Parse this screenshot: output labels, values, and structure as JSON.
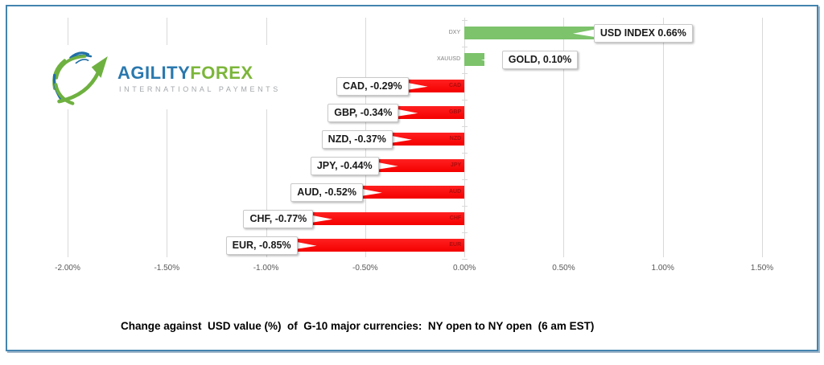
{
  "page": {
    "frame_border_color": "#4484ae",
    "background": "#ffffff"
  },
  "logo": {
    "word1": "AGILITY",
    "word2": "FOREX",
    "tagline": "INTERNATIONAL PAYMENTS",
    "word1_color": "#2a78ae",
    "word2_color": "#7cb63a",
    "tagline_color": "#a3a7ab",
    "icon_blue": "#1f6fa6",
    "icon_green": "#6fb140"
  },
  "chart_data": {
    "type": "bar",
    "orientation": "horizontal",
    "title": "Change against  USD value (%)  of  G-10 major currencies:  NY open to NY open  (6 am EST)",
    "xlabel": "",
    "ylabel": "",
    "xlim": [
      -2.0,
      1.5
    ],
    "grid": true,
    "x_ticks": [
      {
        "value": -2.0,
        "label": "-2.00%"
      },
      {
        "value": -1.5,
        "label": "-1.50%"
      },
      {
        "value": -1.0,
        "label": "-1.00%"
      },
      {
        "value": -0.5,
        "label": "-0.50%"
      },
      {
        "value": 0.0,
        "label": "0.00%"
      },
      {
        "value": 0.5,
        "label": "0.50%"
      },
      {
        "value": 1.0,
        "label": "1.00%"
      },
      {
        "value": 1.5,
        "label": "1.50%"
      }
    ],
    "categories": [
      "DXY",
      "XAUUSD",
      "CAD",
      "GBP",
      "NZD",
      "JPY",
      "AUD",
      "CHF",
      "EUR"
    ],
    "values": [
      0.66,
      0.1,
      -0.29,
      -0.34,
      -0.37,
      -0.44,
      -0.52,
      -0.77,
      -0.85
    ],
    "data_labels": [
      "USD INDEX 0.66%",
      "GOLD, 0.10%",
      "CAD, -0.29%",
      "GBP, -0.34%",
      "NZD, -0.37%",
      "JPY, -0.44%",
      "AUD, -0.52%",
      "CHF, -0.77%",
      "EUR, -0.85%"
    ],
    "positive_color": "#7cc36b",
    "negative_color": "#fe0f0f",
    "tick_label_color": "#595959",
    "gridline_color": "#d9d9d9",
    "legend": null
  }
}
